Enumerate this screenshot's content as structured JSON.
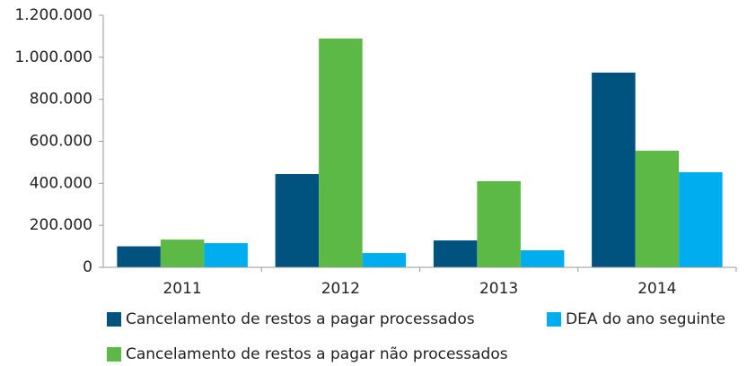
{
  "chart_data": {
    "type": "bar",
    "categories": [
      "2011",
      "2012",
      "2013",
      "2014"
    ],
    "series": [
      {
        "name": "Cancelamento de restos a pagar processados",
        "color": "#00527f",
        "values": [
          100000,
          444000,
          128000,
          927000
        ]
      },
      {
        "name": "Cancelamento de restos a pagar não processados",
        "color": "#5cb946",
        "values": [
          132000,
          1089000,
          410000,
          555000
        ]
      },
      {
        "name": "DEA do ano seguinte",
        "color": "#00aeef",
        "values": [
          115000,
          68000,
          81000,
          453000
        ]
      }
    ],
    "ylim": [
      0,
      1200000
    ],
    "yticks": [
      0,
      {
        "value": 200000,
        "label": "200.000"
      },
      {
        "value": 400000,
        "label": "400.000"
      },
      {
        "value": 600000,
        "label": "600.000"
      },
      {
        "value": 800000,
        "label": "800.000"
      },
      {
        "value": 1000000,
        "label": "1.000.000"
      },
      {
        "value": 1200000,
        "label": "1.200.000"
      }
    ],
    "legend": "bottom"
  }
}
